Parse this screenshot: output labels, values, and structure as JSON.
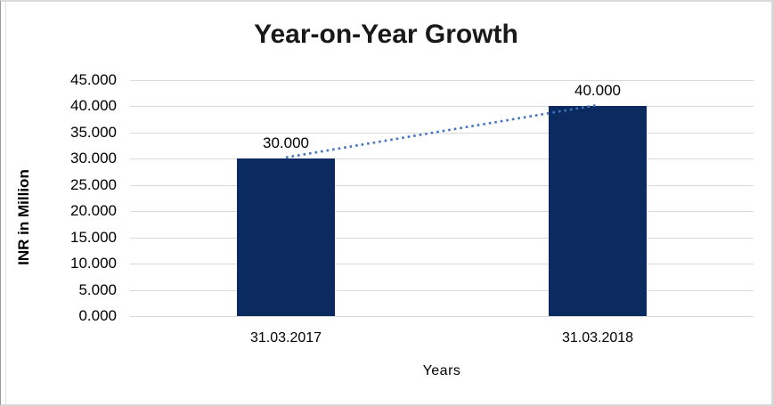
{
  "chart": {
    "title": "Year-on-Year Growth",
    "y_axis_title": "INR in Million",
    "x_axis_title": "Years"
  },
  "chart_data": {
    "type": "bar",
    "title": "Year-on-Year Growth",
    "xlabel": "Years",
    "ylabel": "INR in Million",
    "categories": [
      "31.03.2017",
      "31.03.2018"
    ],
    "values": [
      30.0,
      40.0
    ],
    "data_labels": [
      "30.000",
      "40.000"
    ],
    "ylim": [
      0,
      45
    ],
    "ytick_step": 5,
    "ytick_labels": [
      "0.000",
      "5.000",
      "10.000",
      "15.000",
      "20.000",
      "25.000",
      "30.000",
      "35.000",
      "40.000",
      "45.000"
    ],
    "grid": true,
    "legend": "none",
    "trendline": {
      "style": "dotted",
      "color": "#4472c4",
      "connects": "bar tops"
    },
    "colors": {
      "bar": "#0b2a60",
      "gridline": "#d9d9d9",
      "text": "#000000",
      "title": "#191919"
    }
  }
}
